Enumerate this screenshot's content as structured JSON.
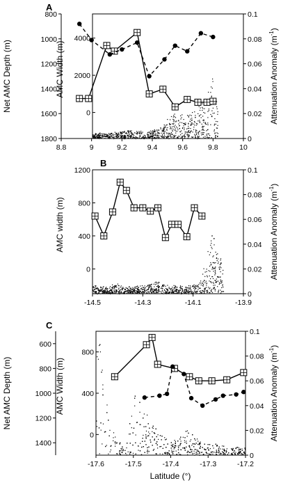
{
  "figure": {
    "xlabel": "Latitude (°)"
  },
  "chart_data": [
    {
      "panel": "A",
      "type": "line",
      "right_axis": {
        "label_main": "Attenuation Anomaly (m",
        "label_sup": "-1",
        "label_close": ")",
        "ylim": [
          0,
          0.1
        ],
        "ticks": [
          "0",
          "0.02",
          "0.04",
          "0.06",
          "0.08",
          "0.1"
        ],
        "tick_values": [
          0,
          0.02,
          0.04,
          0.06,
          0.08,
          0.1
        ]
      },
      "inner_axis": {
        "label": "AMC Width (m)",
        "ylim": [
          -1400,
          5300
        ],
        "ticks": [
          "0",
          "2000",
          "4000"
        ],
        "tick_values": [
          0,
          2000,
          4000
        ]
      },
      "left_axis": {
        "label": "Net AMC Depth (m)",
        "ylim": [
          1800,
          800
        ],
        "ticks": [
          "800",
          "1000",
          "1200",
          "1400",
          "1600",
          "1800"
        ],
        "tick_values": [
          800,
          1000,
          1200,
          1400,
          1600,
          1800
        ]
      },
      "xlim": [
        8.8,
        10
      ],
      "x_ticks": [
        "8.8",
        "9",
        "9.2",
        "9.4",
        "9.6",
        "9.8",
        "10"
      ],
      "x_tick_values": [
        8.8,
        9.0,
        9.2,
        9.4,
        9.6,
        9.8,
        10.0
      ],
      "series": [
        {
          "role": "amc_width",
          "axis": "inner",
          "style": "solid-square",
          "x": [
            8.92,
            8.98,
            9.1,
            9.15,
            9.3,
            9.38,
            9.47,
            9.55,
            9.63,
            9.7,
            9.76,
            9.8
          ],
          "values": [
            750,
            750,
            3600,
            3300,
            4300,
            1000,
            1250,
            300,
            700,
            550,
            550,
            600
          ]
        },
        {
          "role": "net_amc_depth",
          "axis": "left",
          "style": "dashed-dot",
          "x": [
            8.92,
            9.0,
            9.12,
            9.2,
            9.3,
            9.38,
            9.48,
            9.55,
            9.63,
            9.72,
            9.8
          ],
          "values": [
            880,
            1010,
            1125,
            1085,
            1030,
            1300,
            1165,
            1055,
            1100,
            955,
            985
          ]
        },
        {
          "role": "attenuation_anomaly",
          "axis": "right",
          "style": "dots",
          "spiky": true,
          "x": [
            8.9,
            9.0,
            9.1,
            9.2,
            9.3,
            9.35,
            9.45,
            9.5,
            9.55,
            9.6,
            9.65,
            9.7,
            9.75,
            9.8,
            9.83
          ],
          "values": [
            0.002,
            0.003,
            0.004,
            0.005,
            0.006,
            0.004,
            0.008,
            0.015,
            0.022,
            0.018,
            0.02,
            0.025,
            0.03,
            0.055,
            0.02
          ]
        }
      ]
    },
    {
      "panel": "B",
      "type": "line",
      "right_axis": {
        "label_main": "Attenuation Anomaly (m",
        "label_sup": "-1",
        "label_close": ")",
        "ylim": [
          0,
          0.1
        ],
        "ticks": [
          "0",
          "0.02",
          "0.04",
          "0.06",
          "0.08",
          "0.1"
        ],
        "tick_values": [
          0,
          0.02,
          0.04,
          0.06,
          0.08,
          0.1
        ]
      },
      "inner_axis": {
        "label": "AMC width (m)",
        "ylim": [
          -300,
          1200
        ],
        "ticks": [
          "0",
          "400",
          "800",
          "1200"
        ],
        "tick_values": [
          0,
          400,
          800,
          1200
        ]
      },
      "xlim": [
        -14.5,
        -13.9
      ],
      "x_ticks": [
        "-14.5",
        "-14.3",
        "-14.1",
        "-13.9"
      ],
      "x_tick_values": [
        -14.5,
        -14.3,
        -14.1,
        -13.9
      ],
      "series": [
        {
          "role": "amc_width",
          "axis": "inner",
          "style": "solid-square",
          "x": [
            -14.49,
            -14.455,
            -14.42,
            -14.39,
            -14.365,
            -14.335,
            -14.3,
            -14.27,
            -14.24,
            -14.21,
            -14.185,
            -14.16,
            -14.125,
            -14.095,
            -14.065
          ],
          "values": [
            640,
            400,
            690,
            1050,
            950,
            740,
            740,
            700,
            740,
            380,
            540,
            540,
            390,
            740,
            640
          ]
        },
        {
          "role": "attenuation_anomaly",
          "axis": "right",
          "style": "dots",
          "spiky": true,
          "x": [
            -14.5,
            -14.45,
            -14.4,
            -14.35,
            -14.3,
            -14.25,
            -14.2,
            -14.15,
            -14.1,
            -14.07,
            -14.05,
            -14.02,
            -14.0,
            -13.98
          ],
          "values": [
            0.006,
            0.005,
            0.007,
            0.005,
            0.006,
            0.009,
            0.006,
            0.006,
            0.006,
            0.01,
            0.03,
            0.05,
            0.035,
            0.02
          ]
        }
      ]
    },
    {
      "panel": "C",
      "type": "line",
      "right_axis": {
        "label_main": "Attenuation Anomaly (m",
        "label_sup": "-1",
        "label_close": ")",
        "ylim": [
          0,
          0.1
        ],
        "ticks": [
          "0",
          "0.02",
          "0.04",
          "0.06",
          "0.08",
          "0.1"
        ],
        "tick_values": [
          0,
          0.02,
          0.04,
          0.06,
          0.08,
          0.1
        ]
      },
      "inner_axis": {
        "label": "AMC Width (m)",
        "ylim": [
          -200,
          1000
        ],
        "ticks": [
          "0",
          "400",
          "800"
        ],
        "tick_values": [
          0,
          400,
          800
        ]
      },
      "left_axis": {
        "label": "Net AMC Depth (m)",
        "ylim": [
          1500,
          500
        ],
        "ticks": [
          "600",
          "800",
          "1000",
          "1200",
          "1400"
        ],
        "tick_values": [
          600,
          800,
          1000,
          1200,
          1400
        ]
      },
      "xlim": [
        -17.6,
        -17.2
      ],
      "x_ticks": [
        "-17.6",
        "-17.5",
        "-17.4",
        "-17.3",
        "-17.2"
      ],
      "x_tick_values": [
        -17.6,
        -17.5,
        -17.4,
        -17.3,
        -17.2
      ],
      "series": [
        {
          "role": "amc_width",
          "axis": "inner",
          "style": "solid-square",
          "x": [
            -17.55,
            -17.465,
            -17.45,
            -17.435,
            -17.39,
            -17.35,
            -17.325,
            -17.29,
            -17.25,
            -17.205
          ],
          "values": [
            560,
            870,
            940,
            680,
            640,
            560,
            520,
            520,
            530,
            600
          ]
        },
        {
          "role": "net_amc_depth",
          "axis": "left",
          "style": "dashed-dot",
          "x": [
            -17.47,
            -17.43,
            -17.41,
            -17.395,
            -17.365,
            -17.345,
            -17.315,
            -17.28,
            -17.26,
            -17.225,
            -17.205
          ],
          "values": [
            1035,
            1020,
            1005,
            785,
            845,
            1040,
            1100,
            1050,
            1020,
            1010,
            990
          ]
        },
        {
          "role": "attenuation_anomaly",
          "axis": "right",
          "style": "dots",
          "spiky": true,
          "x": [
            -17.6,
            -17.59,
            -17.58,
            -17.57,
            -17.56,
            -17.54,
            -17.52,
            -17.5,
            -17.48,
            -17.46,
            -17.44,
            -17.42,
            -17.4,
            -17.36,
            -17.32,
            -17.28,
            -17.24,
            -17.2
          ],
          "values": [
            0.08,
            0.095,
            0.07,
            0.05,
            0.03,
            0.01,
            0.005,
            0.05,
            0.04,
            0.03,
            0.02,
            0.015,
            0.01,
            0.02,
            0.01,
            0.008,
            0.006,
            0.006
          ]
        }
      ]
    }
  ]
}
